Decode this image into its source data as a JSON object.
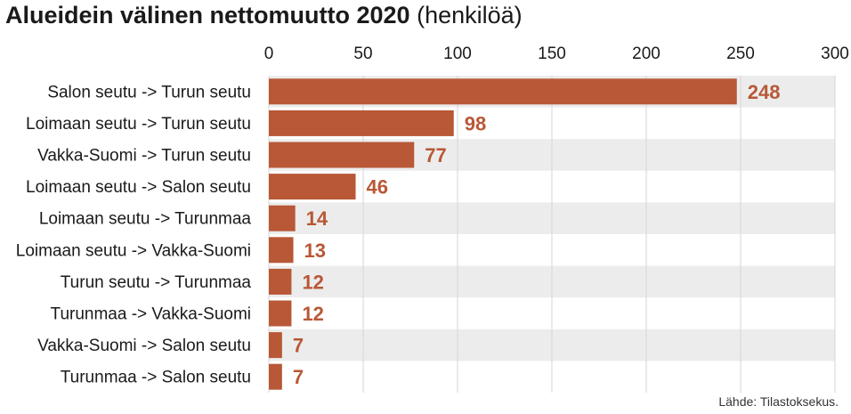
{
  "header": {
    "title": "Alueidein välinen nettomuutto 2020",
    "subtitle": "(henkilöä)"
  },
  "source": "Lähde: Tilastoksekus.",
  "colors": {
    "bar": "#b85836",
    "value_label": "#b85836",
    "band": "#ececec",
    "grid": "#d6d6d6"
  },
  "chart_data": {
    "type": "bar",
    "orientation": "horizontal",
    "title": "Alueidein välinen nettomuutto 2020",
    "xlim": [
      0,
      300
    ],
    "ticks": [
      0,
      50,
      100,
      150,
      200,
      250,
      300
    ],
    "tick_position": "top",
    "grid": true,
    "categories": [
      "Salon seutu -> Turun seutu",
      "Loimaan seutu -> Turun seutu",
      "Vakka-Suomi -> Turun seutu",
      "Loimaan seutu -> Salon seutu",
      "Loimaan seutu -> Turunmaa",
      "Loimaan seutu -> Vakka-Suomi",
      "Turun seutu -> Turunmaa",
      "Turunmaa -> Vakka-Suomi",
      "Vakka-Suomi -> Salon seutu",
      "Turunmaa -> Salon seutu"
    ],
    "values": [
      248,
      98,
      77,
      46,
      14,
      13,
      12,
      12,
      7,
      7
    ]
  }
}
